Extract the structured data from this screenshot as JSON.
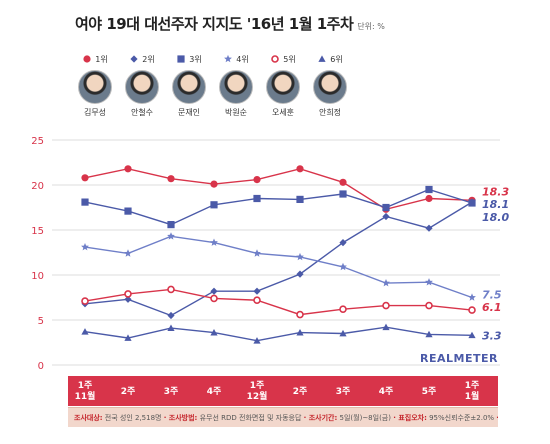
{
  "title": "여야 19대 대선주자 지지도 '16년 1월 1주차",
  "unit": "단위: %",
  "legend": [
    {
      "rank": "1위",
      "name": "김무성",
      "marker": "circle",
      "color": "#d8344a"
    },
    {
      "rank": "2위",
      "name": "안철수",
      "marker": "diamond",
      "color": "#4b5aa8"
    },
    {
      "rank": "3위",
      "name": "문재인",
      "marker": "square",
      "color": "#4b5aa8"
    },
    {
      "rank": "4위",
      "name": "박원순",
      "marker": "star",
      "color": "#6f7fc8"
    },
    {
      "rank": "5위",
      "name": "오세훈",
      "marker": "ring",
      "color": "#d8344a"
    },
    {
      "rank": "6위",
      "name": "안희정",
      "marker": "triangle",
      "color": "#4b5aa8"
    }
  ],
  "watermark": "REALMETER",
  "footer": {
    "parts": [
      {
        "key": "조사대상:",
        "val": "전국 성인 2,518명"
      },
      {
        "key": "조사방법:",
        "val": "유무선 RDD 전화면접 및 자동응답"
      },
      {
        "key": "조사기간:",
        "val": "5일(월)~8일(금)"
      },
      {
        "key": "표집오차:",
        "val": "95%신뢰수준±2.0%"
      },
      {
        "key": "조사기관:",
        "val": "리얼미터"
      }
    ]
  },
  "chart_data": {
    "type": "line",
    "categories": [
      "1주\n11월",
      "2주",
      "3주",
      "4주",
      "1주\n12월",
      "2주",
      "3주",
      "4주",
      "5주",
      "1주\n1월"
    ],
    "ylim": [
      0,
      25
    ],
    "yticks": [
      0,
      5,
      10,
      15,
      20,
      25
    ],
    "grid": true,
    "series": [
      {
        "name": "김무성",
        "marker": "circle",
        "color": "#d8344a",
        "values": [
          20.8,
          21.8,
          20.7,
          20.1,
          20.6,
          21.8,
          20.3,
          17.3,
          18.5,
          18.3
        ],
        "end_label": "18.3"
      },
      {
        "name": "안철수",
        "marker": "diamond",
        "color": "#4b5aa8",
        "values": [
          6.8,
          7.3,
          5.5,
          8.2,
          8.2,
          10.1,
          13.6,
          16.5,
          15.2,
          18.1
        ],
        "end_label": "18.1"
      },
      {
        "name": "문재인",
        "marker": "square",
        "color": "#4b5aa8",
        "values": [
          18.1,
          17.1,
          15.6,
          17.8,
          18.5,
          18.4,
          19.0,
          17.5,
          19.5,
          18.0
        ],
        "end_label": "18.0"
      },
      {
        "name": "박원순",
        "marker": "star",
        "color": "#6f7fc8",
        "values": [
          13.1,
          12.4,
          14.3,
          13.6,
          12.4,
          12.0,
          10.9,
          9.1,
          9.2,
          7.5
        ],
        "end_label": "7.5"
      },
      {
        "name": "오세훈",
        "marker": "ring",
        "color": "#d8344a",
        "values": [
          7.1,
          7.9,
          8.4,
          7.4,
          7.2,
          5.6,
          6.2,
          6.6,
          6.6,
          6.1
        ],
        "end_label": "6.1"
      },
      {
        "name": "안희정",
        "marker": "triangle",
        "color": "#4b5aa8",
        "values": [
          3.7,
          3.0,
          4.1,
          3.6,
          2.7,
          3.6,
          3.5,
          4.2,
          3.4,
          3.3
        ],
        "end_label": "3.3"
      }
    ]
  }
}
